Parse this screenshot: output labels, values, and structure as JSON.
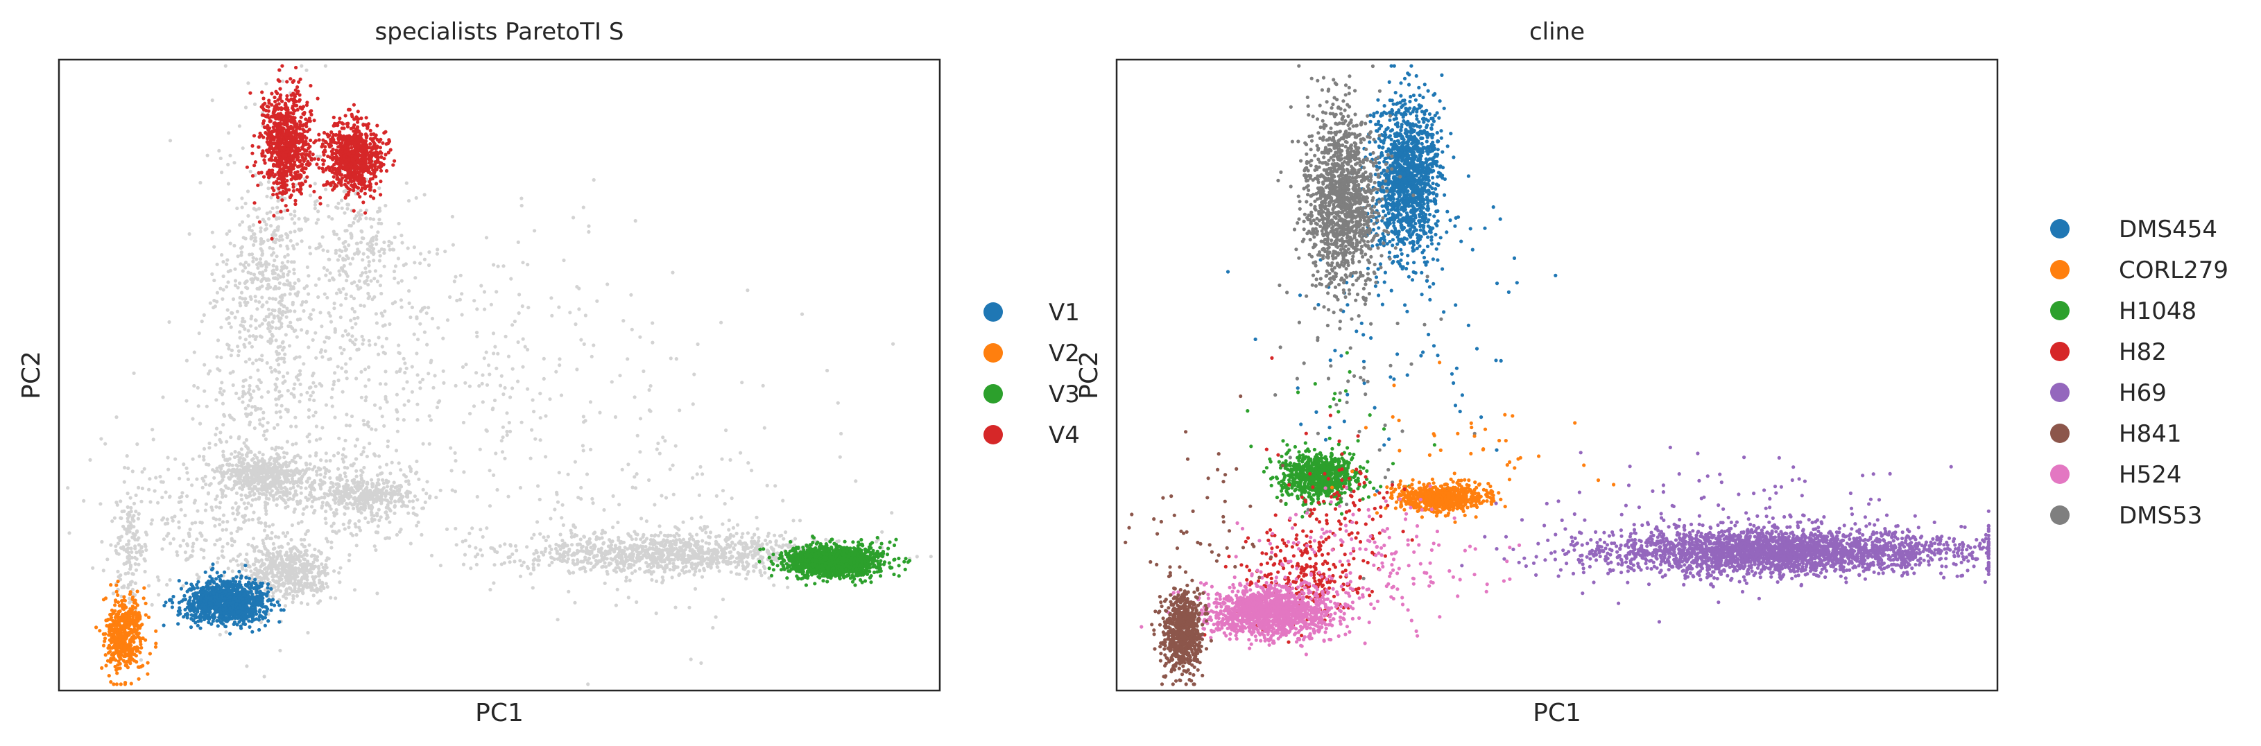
{
  "chart_data": [
    {
      "type": "scatter",
      "title": "specialists ParetoTI S",
      "xlabel": "PC1",
      "ylabel": "PC2",
      "grid": false,
      "legend_placement": "right",
      "legend": [
        {
          "label": "V1",
          "color": "#1f77b4"
        },
        {
          "label": "V2",
          "color": "#ff7f0e"
        },
        {
          "label": "V3",
          "color": "#2ca02c"
        },
        {
          "label": "V4",
          "color": "#d62728"
        }
      ],
      "background_color": "#d3d3d3",
      "clusters": [
        {
          "group": "background",
          "cx": 0.26,
          "cy": 0.81,
          "sx": 0.025,
          "sy": 0.022,
          "n": 500
        },
        {
          "group": "background",
          "cx": 0.33,
          "cy": 0.69,
          "sx": 0.04,
          "sy": 0.04,
          "n": 250
        },
        {
          "group": "background",
          "cx": 0.2,
          "cy": 0.65,
          "sx": 0.014,
          "sy": 0.018,
          "n": 100
        },
        {
          "group": "background",
          "cx": 0.08,
          "cy": 0.78,
          "sx": 0.008,
          "sy": 0.05,
          "n": 130
        },
        {
          "group": "background",
          "cx": 0.24,
          "cy": 0.33,
          "sx": 0.02,
          "sy": 0.07,
          "n": 200
        },
        {
          "group": "background",
          "cx": 0.34,
          "cy": 0.3,
          "sx": 0.025,
          "sy": 0.06,
          "n": 200
        },
        {
          "group": "background",
          "cx": 0.23,
          "cy": 0.46,
          "sx": 0.035,
          "sy": 0.18,
          "n": 500
        },
        {
          "group": "background",
          "cx": 0.34,
          "cy": 0.45,
          "sx": 0.06,
          "sy": 0.12,
          "n": 220
        },
        {
          "group": "background",
          "cx": 0.47,
          "cy": 0.45,
          "sx": 0.12,
          "sy": 0.1,
          "n": 220
        },
        {
          "group": "background",
          "cx": 0.24,
          "cy": 0.66,
          "sx": 0.025,
          "sy": 0.018,
          "n": 420
        },
        {
          "group": "background",
          "cx": 0.35,
          "cy": 0.69,
          "sx": 0.03,
          "sy": 0.011,
          "n": 300
        },
        {
          "group": "background",
          "cx": 0.7,
          "cy": 0.782,
          "sx": 0.09,
          "sy": 0.016,
          "n": 1100
        },
        {
          "group": "background",
          "cx": 0.62,
          "cy": 0.7,
          "sx": 0.14,
          "sy": 0.1,
          "n": 200
        },
        {
          "group": "background",
          "cx": 0.17,
          "cy": 0.73,
          "sx": 0.06,
          "sy": 0.07,
          "n": 300
        },
        {
          "group": "V1",
          "cx": 0.19,
          "cy": 0.86,
          "sx": 0.022,
          "sy": 0.017,
          "n": 1200
        },
        {
          "group": "V2",
          "cx": 0.075,
          "cy": 0.91,
          "sx": 0.011,
          "sy": 0.03,
          "n": 500
        },
        {
          "group": "V3",
          "cx": 0.88,
          "cy": 0.795,
          "sx": 0.026,
          "sy": 0.012,
          "n": 1500
        },
        {
          "group": "V4",
          "cx": 0.258,
          "cy": 0.13,
          "sx": 0.014,
          "sy": 0.04,
          "n": 800
        },
        {
          "group": "V4",
          "cx": 0.335,
          "cy": 0.155,
          "sx": 0.016,
          "sy": 0.027,
          "n": 800
        }
      ]
    },
    {
      "type": "scatter",
      "title": "cline",
      "xlabel": "PC1",
      "ylabel": "PC2",
      "grid": false,
      "legend_placement": "right",
      "legend": [
        {
          "label": "DMS454",
          "color": "#1f77b4"
        },
        {
          "label": "CORL279",
          "color": "#ff7f0e"
        },
        {
          "label": "H1048",
          "color": "#2ca02c"
        },
        {
          "label": "H82",
          "color": "#d62728"
        },
        {
          "label": "H69",
          "color": "#9467bd"
        },
        {
          "label": "H841",
          "color": "#8c564b"
        },
        {
          "label": "H524",
          "color": "#e377c2"
        },
        {
          "label": "DMS53",
          "color": "#7f7f7f"
        }
      ],
      "clusters": [
        {
          "group": "DMS454",
          "cx": 0.33,
          "cy": 0.19,
          "sx": 0.018,
          "sy": 0.06,
          "n": 1400
        },
        {
          "group": "DMS454",
          "cx": 0.33,
          "cy": 0.42,
          "sx": 0.07,
          "sy": 0.13,
          "n": 90
        },
        {
          "group": "DMS53",
          "cx": 0.255,
          "cy": 0.22,
          "sx": 0.02,
          "sy": 0.07,
          "n": 1300
        },
        {
          "group": "DMS53",
          "cx": 0.26,
          "cy": 0.45,
          "sx": 0.045,
          "sy": 0.17,
          "n": 60
        },
        {
          "group": "H1048",
          "cx": 0.23,
          "cy": 0.66,
          "sx": 0.022,
          "sy": 0.018,
          "n": 800
        },
        {
          "group": "H1048",
          "cx": 0.24,
          "cy": 0.6,
          "sx": 0.035,
          "sy": 0.07,
          "n": 40
        },
        {
          "group": "CORL279",
          "cx": 0.37,
          "cy": 0.695,
          "sx": 0.025,
          "sy": 0.011,
          "n": 700
        },
        {
          "group": "CORL279",
          "cx": 0.4,
          "cy": 0.62,
          "sx": 0.08,
          "sy": 0.06,
          "n": 40
        },
        {
          "group": "H69",
          "cx": 0.75,
          "cy": 0.78,
          "sx": 0.1,
          "sy": 0.018,
          "n": 2600
        },
        {
          "group": "H69",
          "cx": 0.7,
          "cy": 0.74,
          "sx": 0.12,
          "sy": 0.05,
          "n": 150
        },
        {
          "group": "H82",
          "cx": 0.21,
          "cy": 0.82,
          "sx": 0.035,
          "sy": 0.04,
          "n": 250
        },
        {
          "group": "H82",
          "cx": 0.25,
          "cy": 0.72,
          "sx": 0.04,
          "sy": 0.06,
          "n": 100
        },
        {
          "group": "H524",
          "cx": 0.175,
          "cy": 0.875,
          "sx": 0.035,
          "sy": 0.02,
          "n": 1400
        },
        {
          "group": "H524",
          "cx": 0.27,
          "cy": 0.8,
          "sx": 0.07,
          "sy": 0.05,
          "n": 200
        },
        {
          "group": "H841",
          "cx": 0.075,
          "cy": 0.91,
          "sx": 0.011,
          "sy": 0.032,
          "n": 700
        },
        {
          "group": "H841",
          "cx": 0.1,
          "cy": 0.76,
          "sx": 0.04,
          "sy": 0.08,
          "n": 60
        }
      ]
    }
  ]
}
